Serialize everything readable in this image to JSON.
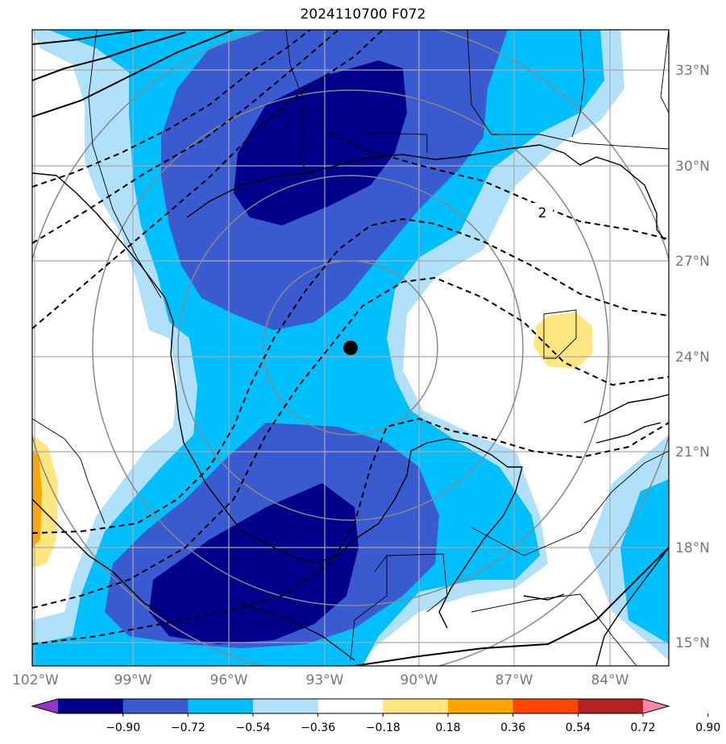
{
  "title": "2024110700 F072",
  "lat_labels": [
    "33°N",
    "30°N",
    "27°N",
    "24°N",
    "21°N",
    "18°N",
    "15°N"
  ],
  "lon_labels": [
    "102°W",
    "99°W",
    "96°W",
    "93°W",
    "90°W",
    "87°W",
    "84°W"
  ],
  "contour_label": "2",
  "colorbar": {
    "ticks": [
      "−0.90",
      "−0.72",
      "−0.54",
      "−0.36",
      "−0.18",
      "0.18",
      "0.36",
      "0.54",
      "0.72",
      "0.90"
    ],
    "colors": [
      "#9932cc",
      "#00008b",
      "#3a5bcf",
      "#00bfff",
      "#b0e0fa",
      "#ffffff",
      "#ffe680",
      "#ffa500",
      "#ff4500",
      "#b22222",
      "#ff88aa"
    ]
  },
  "fill_colors": {
    "light_blue": "#b0e0fa",
    "sky_blue": "#00bfff",
    "royal_blue": "#3a5bcf",
    "navy": "#00008b",
    "pale_yellow": "#ffe680",
    "orange": "#ffa500"
  }
}
